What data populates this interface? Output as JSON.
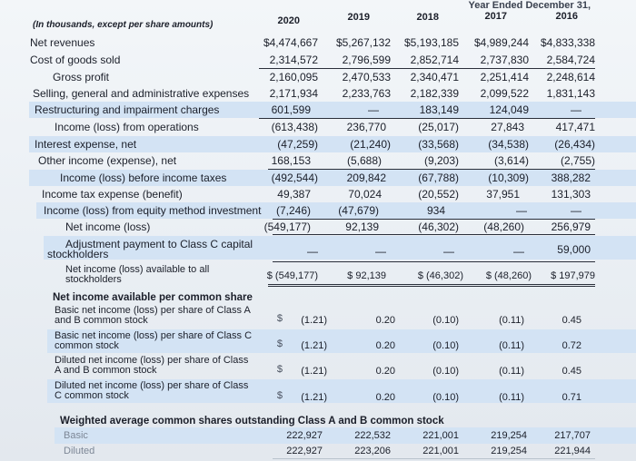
{
  "header": {
    "period": "Year Ended December 31,",
    "units_note": "(In thousands, except per share amounts)",
    "years": [
      "2020",
      "2019",
      "2018",
      "2017",
      "2016"
    ]
  },
  "rows": [
    {
      "label": "Net revenues",
      "values": [
        "$4,474,667",
        "$5,267,132",
        "$5,193,185",
        "$4,989,244",
        "$4,833,338"
      ]
    },
    {
      "label": "Cost of goods sold",
      "values": [
        "2,314,572",
        "2,796,599",
        "2,852,714",
        "2,737,830",
        "2,584,724"
      ]
    },
    {
      "label": "Gross profit",
      "values": [
        "2,160,095",
        "2,470,533",
        "2,340,471",
        "2,251,414",
        "2,248,614"
      ]
    },
    {
      "label": "Selling, general and administrative expenses",
      "values": [
        "2,171,934",
        "2,233,763",
        "2,182,339",
        "2,099,522",
        "1,831,143"
      ]
    },
    {
      "label": "Restructuring and impairment charges",
      "values": [
        "601,599",
        "—",
        "183,149",
        "124,049",
        "—"
      ]
    },
    {
      "label": "Income (loss) from operations",
      "values": [
        "(613,438)",
        "236,770",
        "(25,017)",
        "27,843",
        "417,471"
      ]
    },
    {
      "label": "Interest expense, net",
      "values": [
        "(47,259)",
        "(21,240)",
        "(33,568)",
        "(34,538)",
        "(26,434)"
      ]
    },
    {
      "label": "Other income (expense), net",
      "values": [
        "168,153",
        "(5,688)",
        "(9,203)",
        "(3,614)",
        "(2,755)"
      ]
    },
    {
      "label": "Income (loss) before income taxes",
      "values": [
        "(492,544)",
        "209,842",
        "(67,788)",
        "(10,309)",
        "388,282"
      ]
    },
    {
      "label": "Income tax expense (benefit)",
      "values": [
        "49,387",
        "70,024",
        "(20,552)",
        "37,951",
        "131,303"
      ]
    },
    {
      "label": "Income (loss) from equity method investment",
      "values": [
        "(7,246)",
        "(47,679)",
        "934",
        "—",
        "—"
      ]
    },
    {
      "label": "Net income (loss)",
      "values": [
        "(549,177)",
        "92,139",
        "(46,302)",
        "(48,260)",
        "256,979"
      ]
    },
    {
      "label1": "Adjustment payment to Class C capital",
      "label2": "stockholders",
      "values": [
        "—",
        "—",
        "—",
        "—",
        "59,000"
      ]
    },
    {
      "label1": "Net income (loss) available to all",
      "label2": "stockholders",
      "values": [
        "$ (549,177)",
        "$ 92,139",
        "$ (46,302)",
        "$ (48,260)",
        "$ 197,979"
      ]
    }
  ],
  "per_share": {
    "title": "Net income available per common share",
    "rows": [
      {
        "label1": "Basic net income (loss) per share of Class A",
        "label2": "and B common stock",
        "values": [
          "(1.21)",
          "0.20",
          "(0.10)",
          "(0.11)",
          "0.45"
        ]
      },
      {
        "label1": "Basic net income (loss) per share of Class C",
        "label2": "common stock",
        "values": [
          "(1.21)",
          "0.20",
          "(0.10)",
          "(0.11)",
          "0.72"
        ]
      },
      {
        "label1": "Diluted net income (loss) per share of Class",
        "label2": "A and B common stock",
        "values": [
          "(1.21)",
          "0.20",
          "(0.10)",
          "(0.11)",
          "0.45"
        ]
      },
      {
        "label1": "Diluted net income (loss) per share of Class",
        "label2": "C common stock",
        "values": [
          "(1.21)",
          "0.20",
          "(0.10)",
          "(0.11)",
          "0.71"
        ]
      }
    ]
  },
  "shares": {
    "title": "Weighted average common shares outstanding Class A and B common stock",
    "rows": [
      {
        "label": "Basic",
        "values": [
          "222,927",
          "222,532",
          "221,001",
          "219,254",
          "217,707"
        ]
      },
      {
        "label": "Diluted",
        "values": [
          "222,927",
          "223,206",
          "221,001",
          "219,254",
          "221,944"
        ]
      }
    ]
  },
  "currency_symbol": "$"
}
